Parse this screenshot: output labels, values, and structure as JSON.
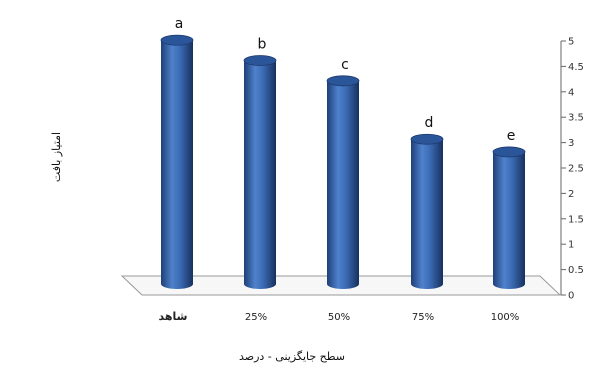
{
  "chart_data": {
    "type": "bar",
    "style": "3d-cylinder",
    "categories": [
      "شاهد",
      "25%",
      "50%",
      "75%",
      "100%"
    ],
    "values": [
      4.8,
      4.4,
      4.0,
      2.85,
      2.6
    ],
    "data_labels": [
      "a",
      "b",
      "c",
      "d",
      "e"
    ],
    "xlabel": "سطح جایگزینی - درصد",
    "ylabel": "امتیاز بافت",
    "ylim": [
      0,
      5
    ],
    "yticks": [
      "0",
      "0.5",
      "1",
      "1.5",
      "2",
      "2.5",
      "3",
      "3.5",
      "4",
      "4.5",
      "5"
    ],
    "y_axis_position": "right",
    "grid": false,
    "legend": "none",
    "bar_color": "#3f6fb5"
  }
}
